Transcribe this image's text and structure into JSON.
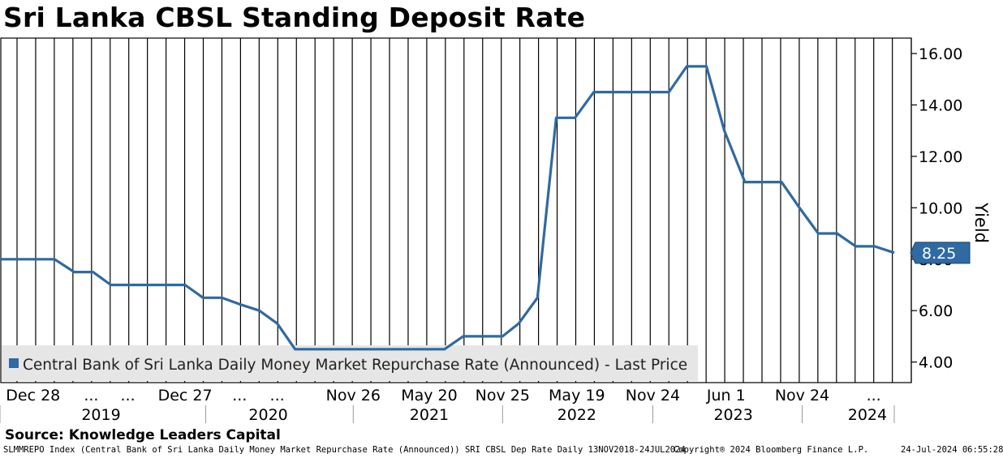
{
  "chart_data": {
    "type": "line",
    "title": "Sri Lanka CBSL Standing Deposit Rate",
    "ylabel": "Yield",
    "xlabel": "",
    "ylim": [
      3.2,
      16.6
    ],
    "yticks": [
      4,
      6,
      8,
      10,
      12,
      14,
      16
    ],
    "ytick_labels": [
      "4.00",
      "6.00",
      "8.00",
      "10.00",
      "12.00",
      "14.00",
      "16.00"
    ],
    "grid": "vertical",
    "legend_position": "bottom-left",
    "line_color": "#2f6aa3",
    "x_ticks": [
      {
        "label": "Dec 28",
        "pos": 0.037
      },
      {
        "label": "...",
        "pos": 0.102
      },
      {
        "label": "...",
        "pos": 0.143
      },
      {
        "label": "Dec 27",
        "pos": 0.207
      },
      {
        "label": "...",
        "pos": 0.268
      },
      {
        "label": "...",
        "pos": 0.31
      },
      {
        "label": "Nov 26",
        "pos": 0.395
      },
      {
        "label": "May 20",
        "pos": 0.48
      },
      {
        "label": "Nov 25",
        "pos": 0.562
      },
      {
        "label": "May 19",
        "pos": 0.645
      },
      {
        "label": "Nov 24",
        "pos": 0.73
      },
      {
        "label": "Jun 1",
        "pos": 0.812
      },
      {
        "label": "Nov 24",
        "pos": 0.897
      },
      {
        "label": "...",
        "pos": 0.977
      }
    ],
    "years": [
      {
        "label": "2019",
        "pos": 0.113
      },
      {
        "label": "2020",
        "pos": 0.3
      },
      {
        "label": "2021",
        "pos": 0.48
      },
      {
        "label": "2022",
        "pos": 0.645
      },
      {
        "label": "2023",
        "pos": 0.82
      },
      {
        "label": "2024",
        "pos": 0.97
      }
    ],
    "year_dividers": [
      0.0,
      0.23,
      0.395,
      0.562,
      0.73,
      0.897,
      1.0
    ],
    "series": [
      {
        "name": "Central Bank of Sri Lanka Daily Money Market Repurchase Rate (Announced) - Last Price",
        "x": [
          0.0,
          0.061,
          0.083,
          0.104,
          0.124,
          0.145,
          0.165,
          0.186,
          0.207,
          0.227,
          0.248,
          0.268,
          0.29,
          0.31,
          0.33,
          0.352,
          0.372,
          0.394,
          0.414,
          0.434,
          0.456,
          0.476,
          0.497,
          0.518,
          0.54,
          0.562,
          0.58,
          0.601,
          0.622,
          0.643,
          0.664,
          0.685,
          0.705,
          0.727,
          0.748,
          0.768,
          0.79,
          0.81,
          0.833,
          0.853,
          0.874,
          0.894,
          0.915,
          0.936,
          0.957,
          0.978,
          1.0
        ],
        "values": [
          8.0,
          8.0,
          7.5,
          7.5,
          7.0,
          7.0,
          7.0,
          7.0,
          7.0,
          6.5,
          6.5,
          6.25,
          6.0,
          5.5,
          4.5,
          4.5,
          4.5,
          4.5,
          4.5,
          4.5,
          4.5,
          4.5,
          4.5,
          5.0,
          5.0,
          5.0,
          5.5,
          6.5,
          13.5,
          13.5,
          14.5,
          14.5,
          14.5,
          14.5,
          14.5,
          15.5,
          15.5,
          13.0,
          11.0,
          11.0,
          11.0,
          10.0,
          9.0,
          9.0,
          8.5,
          8.5,
          8.25
        ]
      }
    ],
    "last_value": "8.25"
  },
  "footer": {
    "source": "Source: Knowledge Leaders Capital",
    "description": "SLMMREPO Index (Central Bank of Sri Lanka Daily Money Market Repurchase Rate (Announced)) SRI CBSL Dep Rate  Daily 13NOV2018-24JUL2024",
    "copyright": "Copyright® 2024 Bloomberg Finance L.P.",
    "timestamp": "24-Jul-2024 06:55:28"
  }
}
